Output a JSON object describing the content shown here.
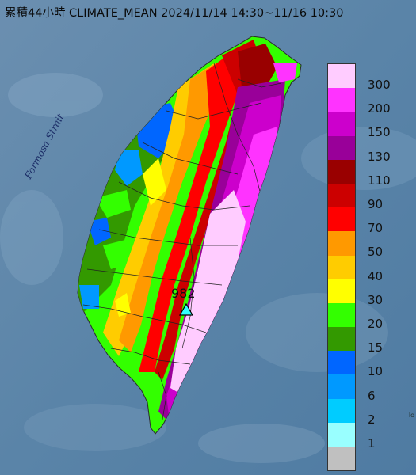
{
  "title": "累積44小時 CLIMATE_MEAN 2024/11/14 14:30~11/16 10:30",
  "strait_label": "Formosa Strait",
  "max_station": {
    "value": "982"
  },
  "legend": [
    {
      "label": "300",
      "color": "#ffccff"
    },
    {
      "label": "200",
      "color": "#ff33ff"
    },
    {
      "label": "150",
      "color": "#cc00cc"
    },
    {
      "label": "130",
      "color": "#990099"
    },
    {
      "label": "110",
      "color": "#990000"
    },
    {
      "label": "90",
      "color": "#cc0000"
    },
    {
      "label": "70",
      "color": "#ff0000"
    },
    {
      "label": "50",
      "color": "#ff9900"
    },
    {
      "label": "40",
      "color": "#ffcc00"
    },
    {
      "label": "30",
      "color": "#ffff00"
    },
    {
      "label": "20",
      "color": "#33ff00"
    },
    {
      "label": "15",
      "color": "#339900"
    },
    {
      "label": "10",
      "color": "#0066ff"
    },
    {
      "label": "6",
      "color": "#0099ff"
    },
    {
      "label": "2",
      "color": "#00ccff"
    },
    {
      "label": "1",
      "color": "#99ffff"
    },
    {
      "label": "",
      "color": "#c0c0c0"
    }
  ],
  "corner_text": "lo"
}
